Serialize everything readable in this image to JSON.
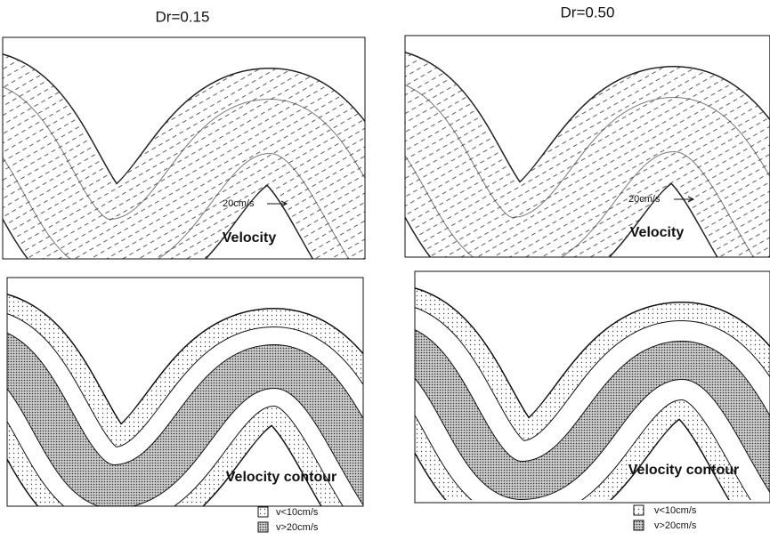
{
  "columns": [
    {
      "title": "Dr=0.15",
      "velocity_panel": {
        "scale_label": "20cm/s",
        "label": "Velocity"
      },
      "contour_panel": {
        "label": "Velocity contour"
      },
      "legend": [
        "v<10cm/s",
        "v>20cm/s"
      ]
    },
    {
      "title": "Dr=0.50",
      "velocity_panel": {
        "scale_label": "20cm/s",
        "label": "Velocity"
      },
      "contour_panel": {
        "label": "Velocity contour"
      },
      "legend": [
        "v<10cm/s",
        "v>20cm/s"
      ]
    }
  ]
}
